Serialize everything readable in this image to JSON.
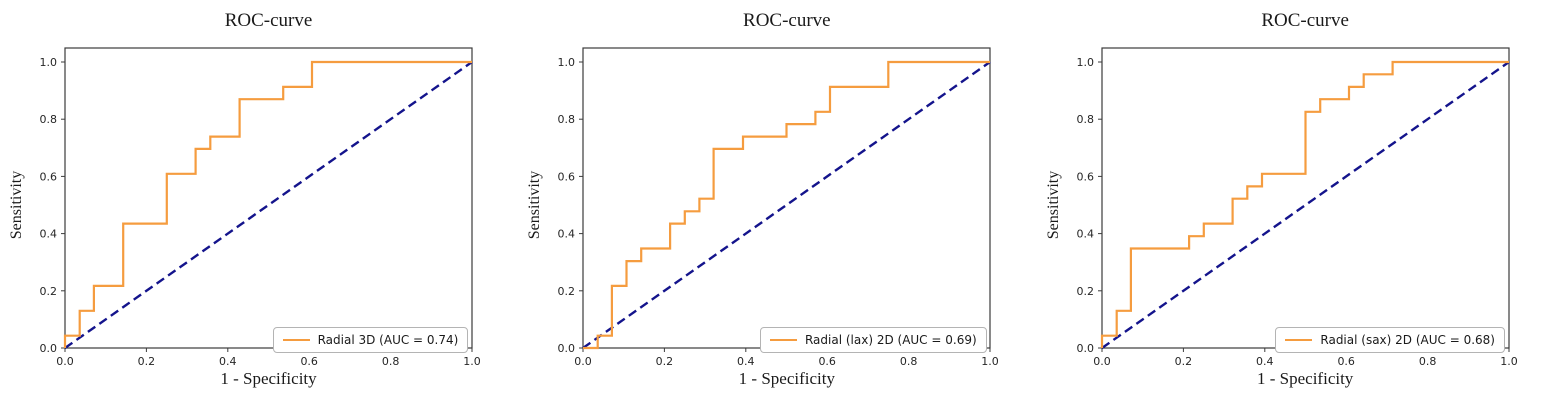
{
  "chart_data": [
    {
      "type": "line",
      "title": "ROC-curve",
      "xlabel": "1 - Specificity",
      "ylabel": "Sensitivity",
      "xlim": [
        0,
        1.0
      ],
      "ylim": [
        0,
        1.05
      ],
      "xtick_labels": [
        "0.0",
        "0.2",
        "0.4",
        "0.6",
        "0.8",
        "1.0"
      ],
      "ytick_labels": [
        "0.0",
        "0.2",
        "0.4",
        "0.6",
        "0.8",
        "1.0"
      ],
      "grid": false,
      "auc": 0.74,
      "legend": {
        "position": "lower-right",
        "label": "Radial 3D (AUC = 0.74)"
      },
      "roc_curve": {
        "color": "#f59c3f",
        "points": [
          [
            0,
            0
          ],
          [
            0,
            0.043
          ],
          [
            0.036,
            0.043
          ],
          [
            0.036,
            0.13
          ],
          [
            0.071,
            0.13
          ],
          [
            0.071,
            0.217
          ],
          [
            0.143,
            0.217
          ],
          [
            0.143,
            0.435
          ],
          [
            0.25,
            0.435
          ],
          [
            0.25,
            0.609
          ],
          [
            0.321,
            0.609
          ],
          [
            0.321,
            0.696
          ],
          [
            0.357,
            0.696
          ],
          [
            0.357,
            0.739
          ],
          [
            0.429,
            0.739
          ],
          [
            0.429,
            0.87
          ],
          [
            0.536,
            0.87
          ],
          [
            0.536,
            0.913
          ],
          [
            0.607,
            0.913
          ],
          [
            0.607,
            1.0
          ],
          [
            1.0,
            1.0
          ]
        ]
      },
      "reference_line": {
        "color": "#14148c",
        "style": "dashed",
        "points": [
          [
            0,
            0
          ],
          [
            1,
            1
          ]
        ]
      }
    },
    {
      "type": "line",
      "title": "ROC-curve",
      "xlabel": "1 - Specificity",
      "ylabel": "Sensitivity",
      "xlim": [
        0,
        1.0
      ],
      "ylim": [
        0,
        1.05
      ],
      "xtick_labels": [
        "0.0",
        "0.2",
        "0.4",
        "0.6",
        "0.8",
        "1.0"
      ],
      "ytick_labels": [
        "0.0",
        "0.2",
        "0.4",
        "0.6",
        "0.8",
        "1.0"
      ],
      "grid": false,
      "auc": 0.69,
      "legend": {
        "position": "lower-right",
        "label": "Radial (lax) 2D (AUC = 0.69)"
      },
      "roc_curve": {
        "color": "#f59c3f",
        "points": [
          [
            0,
            0
          ],
          [
            0.036,
            0
          ],
          [
            0.036,
            0.043
          ],
          [
            0.071,
            0.043
          ],
          [
            0.071,
            0.217
          ],
          [
            0.107,
            0.217
          ],
          [
            0.107,
            0.304
          ],
          [
            0.143,
            0.304
          ],
          [
            0.143,
            0.348
          ],
          [
            0.214,
            0.348
          ],
          [
            0.214,
            0.435
          ],
          [
            0.25,
            0.435
          ],
          [
            0.25,
            0.478
          ],
          [
            0.286,
            0.478
          ],
          [
            0.286,
            0.522
          ],
          [
            0.321,
            0.522
          ],
          [
            0.321,
            0.696
          ],
          [
            0.393,
            0.696
          ],
          [
            0.393,
            0.739
          ],
          [
            0.5,
            0.739
          ],
          [
            0.5,
            0.783
          ],
          [
            0.571,
            0.783
          ],
          [
            0.571,
            0.826
          ],
          [
            0.607,
            0.826
          ],
          [
            0.607,
            0.913
          ],
          [
            0.75,
            0.913
          ],
          [
            0.75,
            1.0
          ],
          [
            1.0,
            1.0
          ]
        ]
      },
      "reference_line": {
        "color": "#14148c",
        "style": "dashed",
        "points": [
          [
            0,
            0
          ],
          [
            1,
            1
          ]
        ]
      }
    },
    {
      "type": "line",
      "title": "ROC-curve",
      "xlabel": "1 - Specificity",
      "ylabel": "Sensitivity",
      "xlim": [
        0,
        1.0
      ],
      "ylim": [
        0,
        1.05
      ],
      "xtick_labels": [
        "0.0",
        "0.2",
        "0.4",
        "0.6",
        "0.8",
        "1.0"
      ],
      "ytick_labels": [
        "0.0",
        "0.2",
        "0.4",
        "0.6",
        "0.8",
        "1.0"
      ],
      "grid": false,
      "auc": 0.68,
      "legend": {
        "position": "lower-right",
        "label": "Radial (sax) 2D (AUC = 0.68)"
      },
      "roc_curve": {
        "color": "#f59c3f",
        "points": [
          [
            0,
            0
          ],
          [
            0,
            0.043
          ],
          [
            0.036,
            0.043
          ],
          [
            0.036,
            0.13
          ],
          [
            0.071,
            0.13
          ],
          [
            0.071,
            0.348
          ],
          [
            0.214,
            0.348
          ],
          [
            0.214,
            0.391
          ],
          [
            0.25,
            0.391
          ],
          [
            0.25,
            0.435
          ],
          [
            0.321,
            0.435
          ],
          [
            0.321,
            0.522
          ],
          [
            0.357,
            0.522
          ],
          [
            0.357,
            0.565
          ],
          [
            0.393,
            0.565
          ],
          [
            0.393,
            0.609
          ],
          [
            0.5,
            0.609
          ],
          [
            0.5,
            0.826
          ],
          [
            0.536,
            0.826
          ],
          [
            0.536,
            0.87
          ],
          [
            0.607,
            0.87
          ],
          [
            0.607,
            0.913
          ],
          [
            0.643,
            0.913
          ],
          [
            0.643,
            0.957
          ],
          [
            0.714,
            0.957
          ],
          [
            0.714,
            1.0
          ],
          [
            1.0,
            1.0
          ]
        ]
      },
      "reference_line": {
        "color": "#14148c",
        "style": "dashed",
        "points": [
          [
            0,
            0
          ],
          [
            1,
            1
          ]
        ]
      }
    }
  ],
  "style": {
    "spine_color": "#3b3b3b",
    "tick_color": "#262626",
    "background": "#ffffff"
  }
}
